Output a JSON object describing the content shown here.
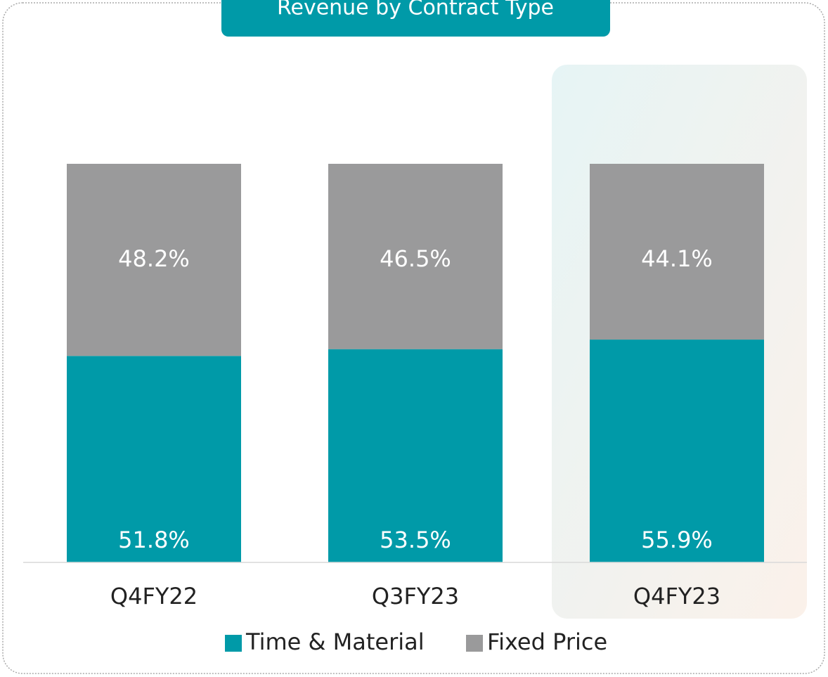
{
  "chart_data": {
    "type": "bar",
    "stacked": true,
    "title": "Revenue by Contract Type",
    "categories": [
      "Q4FY22",
      "Q3FY23",
      "Q4FY23"
    ],
    "series": [
      {
        "name": "Time & Material",
        "color": "#009aa8",
        "values": [
          51.8,
          53.5,
          55.9
        ],
        "value_labels": [
          "51.8%",
          "53.5%",
          "55.9%"
        ]
      },
      {
        "name": "Fixed Price",
        "color": "#9a9a9b",
        "values": [
          48.2,
          46.5,
          44.1
        ],
        "value_labels": [
          "48.2%",
          "46.5%",
          "44.1%"
        ]
      }
    ],
    "ylim": [
      0,
      100
    ],
    "legend": "bottom"
  }
}
